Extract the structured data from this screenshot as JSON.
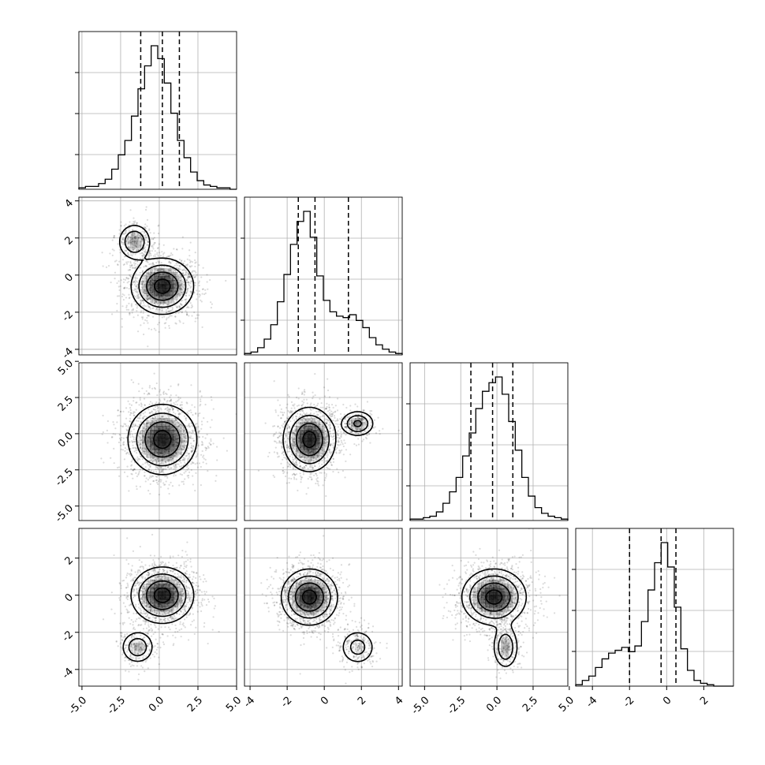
{
  "chart_data": {
    "type": "corner",
    "n_params": 4,
    "grid": true,
    "quantiles": [
      0.16,
      0.5,
      0.84
    ],
    "x_tick_labels": [
      [
        "-5.0",
        "-2.5",
        "0.0",
        "2.5",
        "5.0"
      ],
      [
        "-4",
        "-2",
        "0",
        "2",
        "4"
      ],
      [
        "-5.0",
        "-2.5",
        "0.0",
        "2.5",
        "5.0"
      ],
      [
        "-4",
        "-2",
        "0",
        "2"
      ]
    ],
    "y_tick_labels": [
      [],
      [
        "-4",
        "-2",
        "0",
        "2",
        "4"
      ],
      [
        "-5.0",
        "-2.5",
        "0.0",
        "2.5",
        "5.0"
      ],
      [
        "-4",
        "-2",
        "0",
        "2"
      ]
    ],
    "params": [
      {
        "range": [
          -5.2,
          5.0
        ],
        "ticks": [
          -5.0,
          -2.5,
          0.0,
          2.5,
          5.0
        ],
        "quantile_lines": [
          -1.2,
          0.2,
          1.3
        ],
        "histogram": [
          0.01,
          0.02,
          0.02,
          0.04,
          0.07,
          0.14,
          0.24,
          0.34,
          0.51,
          0.7,
          0.86,
          1.0,
          0.91,
          0.74,
          0.53,
          0.34,
          0.22,
          0.12,
          0.06,
          0.03,
          0.02,
          0.01,
          0.01,
          0.0
        ]
      },
      {
        "range": [
          -4.3,
          4.2
        ],
        "ticks": [
          -4,
          -2,
          0,
          2,
          4
        ],
        "quantile_lines": [
          -1.4,
          -0.5,
          1.3
        ],
        "histogram": [
          0.01,
          0.02,
          0.05,
          0.11,
          0.21,
          0.37,
          0.56,
          0.77,
          0.93,
          1.0,
          0.82,
          0.55,
          0.38,
          0.3,
          0.27,
          0.26,
          0.28,
          0.24,
          0.19,
          0.12,
          0.07,
          0.04,
          0.02,
          0.01
        ]
      },
      {
        "range": [
          -6.0,
          4.9
        ],
        "ticks": [
          -5.0,
          -2.5,
          0.0,
          2.5,
          5.0
        ],
        "quantile_lines": [
          -1.8,
          -0.3,
          1.1
        ],
        "histogram": [
          0.01,
          0.01,
          0.02,
          0.03,
          0.06,
          0.12,
          0.2,
          0.3,
          0.45,
          0.61,
          0.78,
          0.9,
          0.96,
          1.0,
          0.88,
          0.69,
          0.49,
          0.3,
          0.17,
          0.09,
          0.05,
          0.03,
          0.02,
          0.01
        ]
      },
      {
        "range": [
          -4.9,
          3.6
        ],
        "ticks": [
          -4,
          -2,
          0,
          2
        ],
        "quantile_lines": [
          -2.0,
          -0.3,
          0.5
        ],
        "histogram": [
          0.01,
          0.04,
          0.07,
          0.13,
          0.19,
          0.23,
          0.25,
          0.27,
          0.24,
          0.28,
          0.45,
          0.67,
          0.86,
          1.0,
          0.83,
          0.55,
          0.26,
          0.11,
          0.04,
          0.02,
          0.01,
          0.0,
          0.0,
          0.0
        ]
      }
    ],
    "pairs": [
      {
        "row": 1,
        "col": 0,
        "modes": [
          {
            "x": 0.2,
            "y": -0.6,
            "sx": 1.0,
            "sy": 0.75,
            "w": 0.82
          },
          {
            "x": -1.6,
            "y": 1.8,
            "sx": 0.55,
            "sy": 0.5,
            "w": 0.18
          }
        ]
      },
      {
        "row": 2,
        "col": 0,
        "modes": [
          {
            "x": 0.2,
            "y": -0.4,
            "sx": 1.1,
            "sy": 1.2,
            "w": 1.0
          }
        ]
      },
      {
        "row": 2,
        "col": 1,
        "modes": [
          {
            "x": -0.8,
            "y": -0.4,
            "sx": 0.7,
            "sy": 1.1,
            "w": 0.85
          },
          {
            "x": 1.8,
            "y": 0.7,
            "sx": 0.45,
            "sy": 0.45,
            "w": 0.15
          }
        ]
      },
      {
        "row": 3,
        "col": 0,
        "modes": [
          {
            "x": 0.2,
            "y": 0.0,
            "sx": 1.0,
            "sy": 0.75,
            "w": 0.85
          },
          {
            "x": -1.4,
            "y": -2.8,
            "sx": 0.55,
            "sy": 0.45,
            "w": 0.15
          }
        ]
      },
      {
        "row": 3,
        "col": 1,
        "modes": [
          {
            "x": -0.8,
            "y": -0.1,
            "sx": 0.75,
            "sy": 0.75,
            "w": 0.84
          },
          {
            "x": 1.8,
            "y": -2.8,
            "sx": 0.5,
            "sy": 0.5,
            "w": 0.16
          }
        ]
      },
      {
        "row": 3,
        "col": 2,
        "modes": [
          {
            "x": -0.2,
            "y": -0.1,
            "sx": 1.1,
            "sy": 0.75,
            "w": 0.84
          },
          {
            "x": 0.6,
            "y": -2.8,
            "sx": 0.45,
            "sy": 0.6,
            "w": 0.16
          }
        ]
      }
    ],
    "colors": {
      "line": "#000000",
      "grid": "#b0b0b0",
      "density": "#000000",
      "scatter": "#000000"
    }
  }
}
